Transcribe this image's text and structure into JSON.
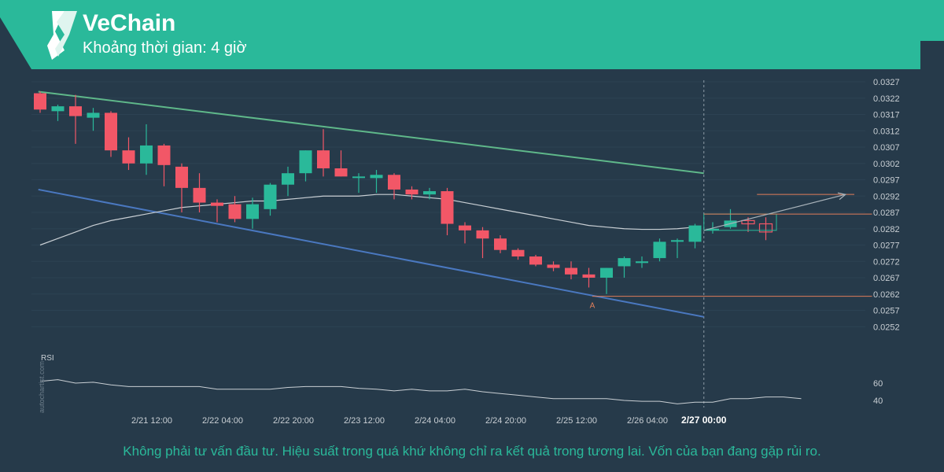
{
  "header": {
    "title": "VeChain",
    "subtitle": "Khoảng thời gian: 4 giờ",
    "logo_icon": "vechain-logo-icon",
    "banner_color": "#2ab99a"
  },
  "footer": {
    "disclaimer": "Không phải tư vấn đầu tư. Hiệu suất trong quá khứ không chỉ ra kết quả trong tương lai. Vốn của bạn đang gặp rủi ro."
  },
  "watermark": "autochartist.com",
  "colors": {
    "background": "#263a4a",
    "bull": "#2ab99a",
    "bear": "#f25767",
    "upper_channel": "#5fb88a",
    "lower_channel": "#4a78c0",
    "moving_average": "#c9cfd4",
    "level": "#e07e5a",
    "rsi": "#c9cfd4",
    "axis_text": "#c9cfd4"
  },
  "chart_data": {
    "type": "candlestick",
    "ylim": [
      0.0247,
      0.0327
    ],
    "y_ticks": [
      "0.0327",
      "0.0322",
      "0.0317",
      "0.0312",
      "0.0307",
      "0.0302",
      "0.0297",
      "0.0292",
      "0.0287",
      "0.0282",
      "0.0277",
      "0.0272",
      "0.0267",
      "0.0262",
      "0.0257",
      "0.0252"
    ],
    "x_ticks": [
      {
        "label": "2/21 12:00",
        "index": 6
      },
      {
        "label": "2/22 04:00",
        "index": 10
      },
      {
        "label": "2/22 20:00",
        "index": 14
      },
      {
        "label": "2/23 12:00",
        "index": 18
      },
      {
        "label": "2/24 04:00",
        "index": 22
      },
      {
        "label": "2/24 20:00",
        "index": 26
      },
      {
        "label": "2/25 12:00",
        "index": 30
      },
      {
        "label": "2/26 04:00",
        "index": 34
      }
    ],
    "highlight_x_tick": {
      "label": "2/27 00:00",
      "index": 38.5
    },
    "candles": [
      {
        "o": 0.03235,
        "h": 0.0324,
        "l": 0.03175,
        "c": 0.03185
      },
      {
        "o": 0.0318,
        "h": 0.032,
        "l": 0.0315,
        "c": 0.03195
      },
      {
        "o": 0.03195,
        "h": 0.0323,
        "l": 0.0308,
        "c": 0.03165
      },
      {
        "o": 0.0316,
        "h": 0.0319,
        "l": 0.0312,
        "c": 0.03175
      },
      {
        "o": 0.03175,
        "h": 0.0318,
        "l": 0.0304,
        "c": 0.0306
      },
      {
        "o": 0.0306,
        "h": 0.031,
        "l": 0.03,
        "c": 0.0302
      },
      {
        "o": 0.0302,
        "h": 0.0314,
        "l": 0.02985,
        "c": 0.03075
      },
      {
        "o": 0.03075,
        "h": 0.0308,
        "l": 0.0295,
        "c": 0.03015
      },
      {
        "o": 0.0301,
        "h": 0.0302,
        "l": 0.0287,
        "c": 0.02945
      },
      {
        "o": 0.02945,
        "h": 0.0299,
        "l": 0.0287,
        "c": 0.029
      },
      {
        "o": 0.029,
        "h": 0.0291,
        "l": 0.0284,
        "c": 0.0289
      },
      {
        "o": 0.02895,
        "h": 0.0292,
        "l": 0.0284,
        "c": 0.0285
      },
      {
        "o": 0.0285,
        "h": 0.02915,
        "l": 0.0282,
        "c": 0.02895
      },
      {
        "o": 0.0288,
        "h": 0.0296,
        "l": 0.0286,
        "c": 0.02955
      },
      {
        "o": 0.02955,
        "h": 0.0301,
        "l": 0.0292,
        "c": 0.0299
      },
      {
        "o": 0.0299,
        "h": 0.0306,
        "l": 0.02965,
        "c": 0.0306
      },
      {
        "o": 0.0306,
        "h": 0.03125,
        "l": 0.0298,
        "c": 0.03005
      },
      {
        "o": 0.03005,
        "h": 0.0306,
        "l": 0.0298,
        "c": 0.0298
      },
      {
        "o": 0.0298,
        "h": 0.0299,
        "l": 0.0293,
        "c": 0.0298
      },
      {
        "o": 0.02975,
        "h": 0.03,
        "l": 0.0293,
        "c": 0.02985
      },
      {
        "o": 0.02985,
        "h": 0.0299,
        "l": 0.0291,
        "c": 0.0294
      },
      {
        "o": 0.0294,
        "h": 0.0295,
        "l": 0.0291,
        "c": 0.02925
      },
      {
        "o": 0.02925,
        "h": 0.02945,
        "l": 0.0291,
        "c": 0.02935
      },
      {
        "o": 0.02935,
        "h": 0.02945,
        "l": 0.028,
        "c": 0.02835
      },
      {
        "o": 0.0283,
        "h": 0.0284,
        "l": 0.02775,
        "c": 0.02815
      },
      {
        "o": 0.02815,
        "h": 0.02825,
        "l": 0.0273,
        "c": 0.0279
      },
      {
        "o": 0.0279,
        "h": 0.028,
        "l": 0.02745,
        "c": 0.02755
      },
      {
        "o": 0.02755,
        "h": 0.0276,
        "l": 0.02725,
        "c": 0.02735
      },
      {
        "o": 0.02735,
        "h": 0.0274,
        "l": 0.02705,
        "c": 0.0271
      },
      {
        "o": 0.0271,
        "h": 0.0272,
        "l": 0.0269,
        "c": 0.027
      },
      {
        "o": 0.027,
        "h": 0.0272,
        "l": 0.02665,
        "c": 0.0268
      },
      {
        "o": 0.0268,
        "h": 0.027,
        "l": 0.0264,
        "c": 0.0267
      },
      {
        "o": 0.0267,
        "h": 0.027,
        "l": 0.0262,
        "c": 0.027
      },
      {
        "o": 0.02705,
        "h": 0.02735,
        "l": 0.0267,
        "c": 0.0273
      },
      {
        "o": 0.02715,
        "h": 0.02735,
        "l": 0.027,
        "c": 0.0272
      },
      {
        "o": 0.0273,
        "h": 0.0279,
        "l": 0.0272,
        "c": 0.0278
      },
      {
        "o": 0.0278,
        "h": 0.0279,
        "l": 0.0273,
        "c": 0.02785
      },
      {
        "o": 0.0278,
        "h": 0.02835,
        "l": 0.0276,
        "c": 0.0283
      },
      {
        "o": 0.02815,
        "h": 0.0284,
        "l": 0.02805,
        "c": 0.0282
      },
      {
        "o": 0.02825,
        "h": 0.0288,
        "l": 0.0282,
        "c": 0.02845
      },
      {
        "o": 0.02845,
        "h": 0.02855,
        "l": 0.0281,
        "c": 0.02835
      },
      {
        "o": 0.02835,
        "h": 0.02855,
        "l": 0.02785,
        "c": 0.0281
      }
    ],
    "moving_average": [
      0.0277,
      0.0279,
      0.0281,
      0.0283,
      0.02845,
      0.02855,
      0.02865,
      0.02875,
      0.02885,
      0.0289,
      0.02895,
      0.029,
      0.02905,
      0.02905,
      0.0291,
      0.02915,
      0.0292,
      0.0292,
      0.0292,
      0.02925,
      0.02925,
      0.0292,
      0.02915,
      0.0291,
      0.029,
      0.0289,
      0.0288,
      0.0287,
      0.0286,
      0.0285,
      0.0284,
      0.0283,
      0.02825,
      0.0282,
      0.02818,
      0.02818,
      0.0282,
      0.02825
    ],
    "upper_channel": {
      "from": {
        "index": -0.1,
        "value": 0.0324
      },
      "to": {
        "index": 37.5,
        "value": 0.0299
      }
    },
    "lower_channel": {
      "from": {
        "index": -0.1,
        "value": 0.0294
      },
      "to": {
        "index": 37.5,
        "value": 0.0255
      }
    },
    "support_level": {
      "value": 0.02613,
      "from_index": 31.2,
      "to_index": 47
    },
    "resistance_level": {
      "value": 0.02865,
      "from_index": 37.5,
      "to_index": 47
    },
    "target_level": {
      "value": 0.02925,
      "from_index": 40.5,
      "to_index": 46
    },
    "projection": {
      "from": {
        "index": 37.5,
        "value": 0.02815
      },
      "to": {
        "index": 45.5,
        "value": 0.02925
      }
    },
    "forecast_box": {
      "index_from": 37.5,
      "index_to": 41.6,
      "value_high": 0.02865,
      "value_low": 0.02815
    },
    "point_label": {
      "text": "A",
      "index": 31.2
    },
    "rsi": {
      "label": "RSI",
      "ticks": [
        60,
        40
      ],
      "ylim": [
        30,
        80
      ],
      "values": [
        62,
        64,
        60,
        61,
        58,
        56,
        56,
        56,
        56,
        56,
        53,
        53,
        53,
        53,
        55,
        56,
        56,
        56,
        54,
        53,
        51,
        53,
        51,
        51,
        53,
        50,
        48,
        46,
        44,
        42,
        42,
        42,
        42,
        40,
        39,
        39,
        36,
        38,
        38,
        42,
        42,
        44,
        44,
        42
      ]
    }
  }
}
